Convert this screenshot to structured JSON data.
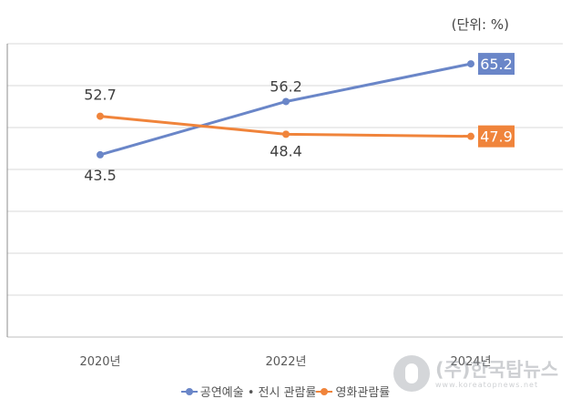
{
  "unit_label": "(단위: %)",
  "watermark": {
    "name": "(주)한국탑뉴스",
    "url": "www.koreatopnews.net"
  },
  "colors": {
    "blue": "#6A86C8",
    "orange": "#F0843B",
    "grid": "#d9d9d9"
  },
  "chart_data": {
    "type": "line",
    "categories": [
      "2020년",
      "2022년",
      "2024년"
    ],
    "series": [
      {
        "name": "공연예술 • 전시 관람률",
        "color": "#6A86C8",
        "values": [
          43.5,
          56.2,
          65.2
        ]
      },
      {
        "name": "영화관람률",
        "color": "#F0843B",
        "values": [
          52.7,
          48.4,
          47.9
        ]
      }
    ],
    "ylim": [
      0,
      70
    ],
    "grid": true,
    "legend": "bottom",
    "data_labels": true
  }
}
